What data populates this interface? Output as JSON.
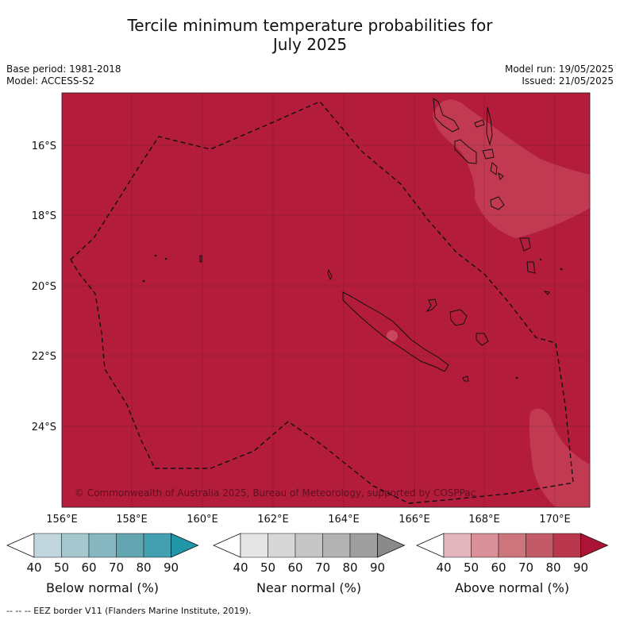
{
  "title": {
    "line1": "Tercile minimum temperature probabilities for",
    "line2": "July 2025"
  },
  "meta": {
    "base_period": "Base period: 1981-2018",
    "model": "Model: ACCESS-S2",
    "model_run": "Model run: 19/05/2025",
    "issued": "Issued: 21/05/2025"
  },
  "map": {
    "fill_color": "#b31c3a",
    "lighter_fill_color": "#c23a52",
    "copyright": "© Commonwealth of Australia 2025, Bureau of Meteorology, supported by COSPPac",
    "lat_labels": [
      "16°S",
      "18°S",
      "20°S",
      "22°S",
      "24°S"
    ],
    "lon_labels": [
      "156°E",
      "158°E",
      "160°E",
      "162°E",
      "164°E",
      "166°E",
      "168°E",
      "170°E"
    ]
  },
  "colorbars": [
    {
      "label": "Below normal (%)",
      "ticks": [
        "40",
        "50",
        "60",
        "70",
        "80",
        "90"
      ],
      "colors": [
        "#ffffff",
        "#c1d7dd",
        "#a5c8ce",
        "#87b7c1",
        "#64a5b2",
        "#43a0b0",
        "#2196a6"
      ]
    },
    {
      "label": "Near normal (%)",
      "ticks": [
        "40",
        "50",
        "60",
        "70",
        "80",
        "90"
      ],
      "colors": [
        "#ffffff",
        "#e5e5e5",
        "#d7d7d7",
        "#c6c6c6",
        "#b3b3b3",
        "#9e9e9e",
        "#8a8a8a"
      ]
    },
    {
      "label": "Above normal (%)",
      "ticks": [
        "40",
        "50",
        "60",
        "70",
        "80",
        "90"
      ],
      "colors": [
        "#ffffff",
        "#e3b5bc",
        "#d99099",
        "#cd757d",
        "#c35a68",
        "#b9384e",
        "#ab1437"
      ]
    }
  ],
  "footnote": "--  --  -- EEZ border V11 (Flanders Marine Institute, 2019)."
}
